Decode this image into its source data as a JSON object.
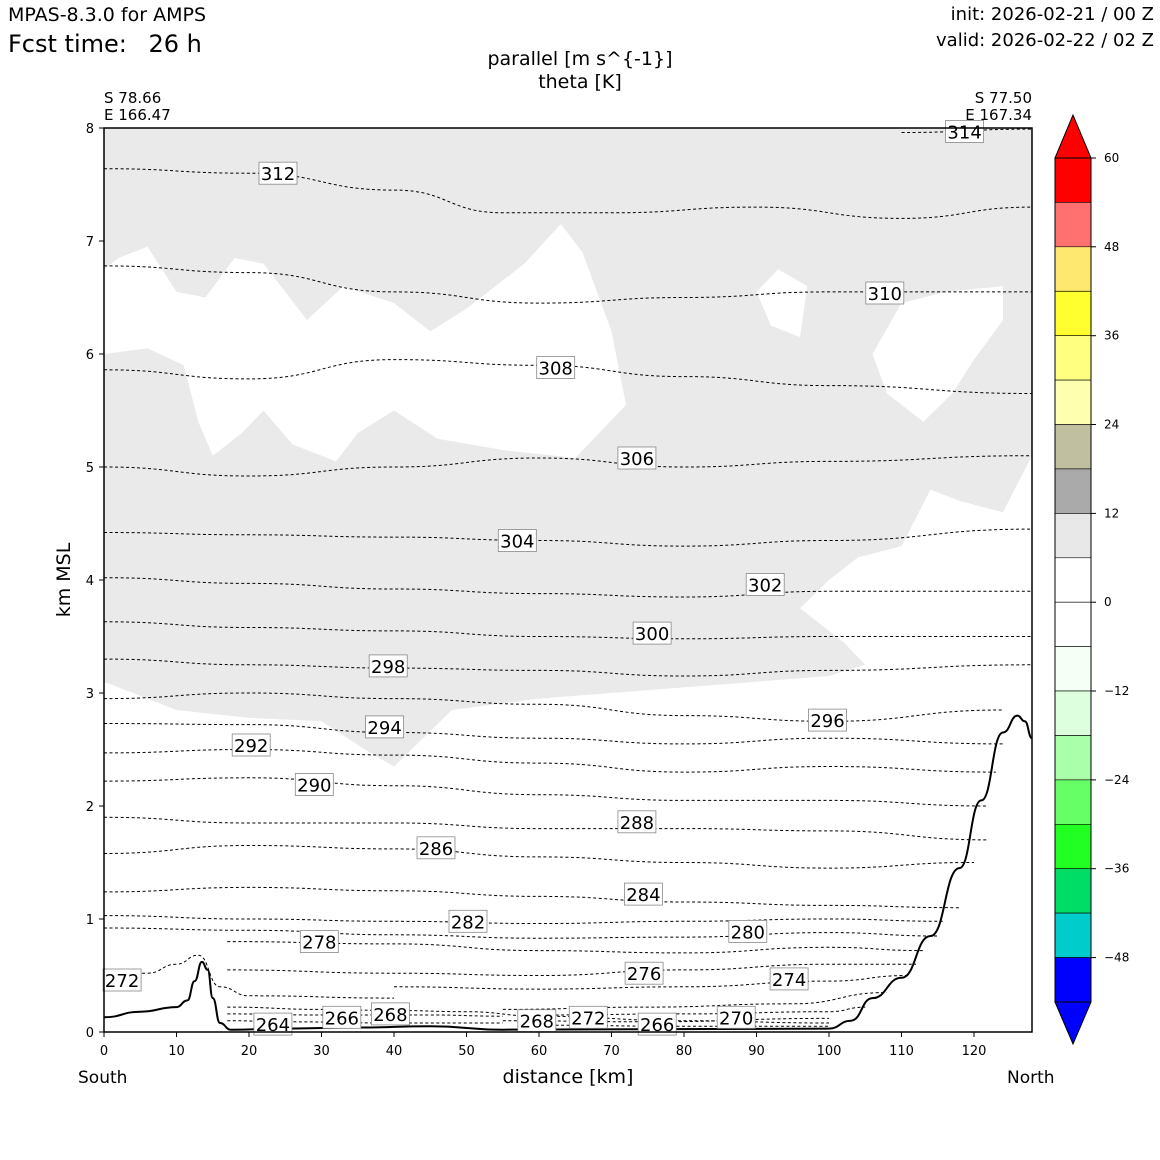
{
  "header": {
    "model": "MPAS-8.3.0 for AMPS",
    "fcst_label": "Fcst time:",
    "fcst_value": "26 h",
    "init": "init: 2026-02-21 / 00 Z",
    "valid": "valid: 2026-02-22 / 02 Z"
  },
  "start_point": {
    "lat": "S 78.66",
    "lon": "E 166.47"
  },
  "end_point": {
    "lat": "S 77.50",
    "lon": "E 167.34"
  },
  "chart_data": {
    "type": "cross-section",
    "title_line1": "parallel [m s^{-1}]",
    "title_line2": "theta [K]",
    "xlabel": "distance [km]",
    "ylabel": "km MSL",
    "xlim": [
      0,
      128
    ],
    "ylim": [
      0,
      8
    ],
    "xticks": [
      0,
      10,
      20,
      30,
      40,
      50,
      60,
      70,
      80,
      90,
      100,
      110,
      120
    ],
    "yticks": [
      0,
      1,
      2,
      3,
      4,
      5,
      6,
      7,
      8
    ],
    "left_end_label": "South",
    "right_end_label": "North",
    "shading_color": "#eaeaea",
    "terrain": [
      [
        0,
        0.13
      ],
      [
        5,
        0.18
      ],
      [
        10,
        0.22
      ],
      [
        11.5,
        0.28
      ],
      [
        12.5,
        0.45
      ],
      [
        13.5,
        0.62
      ],
      [
        14.3,
        0.55
      ],
      [
        15,
        0.3
      ],
      [
        16,
        0.08
      ],
      [
        17.5,
        0.02
      ],
      [
        25,
        0.03
      ],
      [
        35,
        0.04
      ],
      [
        45,
        0.05
      ],
      [
        55,
        0.02
      ],
      [
        100,
        0.03
      ],
      [
        103,
        0.1
      ],
      [
        106,
        0.3
      ],
      [
        110,
        0.48
      ],
      [
        114,
        0.85
      ],
      [
        118,
        1.45
      ],
      [
        121,
        2.05
      ],
      [
        124,
        2.65
      ],
      [
        126,
        2.8
      ],
      [
        127,
        2.75
      ],
      [
        128,
        2.6
      ]
    ],
    "theta_contours": [
      {
        "level": 264,
        "label": "264",
        "label_x": 23.3,
        "label_y": 0.07,
        "points": [
          [
            17,
            0.1
          ],
          [
            25,
            0.09
          ],
          [
            40,
            0.08
          ],
          [
            55,
            0.08
          ]
        ]
      },
      {
        "level": 266,
        "label": "266",
        "label_x": 32.8,
        "label_y": 0.13,
        "points": [
          [
            17,
            0.16
          ],
          [
            30,
            0.15
          ],
          [
            45,
            0.15
          ],
          [
            55,
            0.14
          ]
        ]
      },
      {
        "level": 268,
        "label": "268",
        "label_x": 39.5,
        "label_y": 0.16,
        "points": [
          [
            17,
            0.22
          ],
          [
            30,
            0.2
          ],
          [
            40,
            0.19
          ],
          [
            50,
            0.18
          ],
          [
            60,
            0.14
          ],
          [
            80,
            0.1
          ],
          [
            100,
            0.08
          ]
        ]
      },
      {
        "level": 266,
        "label": "266",
        "label_x": 76.3,
        "label_y": 0.07,
        "points": [
          [
            60,
            0.06
          ],
          [
            80,
            0.05
          ],
          [
            100,
            0.05
          ]
        ]
      },
      {
        "level": 268,
        "label": "268",
        "label_x": 59.7,
        "label_y": 0.1,
        "points": [
          [
            55,
            0.1
          ],
          [
            75,
            0.09
          ],
          [
            100,
            0.12
          ]
        ]
      },
      {
        "level": 270,
        "label": "270",
        "label_x": 87.2,
        "label_y": 0.13,
        "points": [
          [
            60,
            0.15
          ],
          [
            80,
            0.16
          ],
          [
            100,
            0.18
          ],
          [
            105,
            0.22
          ]
        ]
      },
      {
        "level": 272,
        "label": "272",
        "label_x": 66.8,
        "label_y": 0.13,
        "points": [
          [
            55,
            0.2
          ],
          [
            75,
            0.22
          ],
          [
            95,
            0.25
          ],
          [
            108,
            0.35
          ]
        ]
      },
      {
        "level": 272,
        "label": "272",
        "label_x": 2.5,
        "label_y": 0.46,
        "points": [
          [
            0,
            0.48
          ],
          [
            6,
            0.52
          ],
          [
            10,
            0.6
          ],
          [
            13,
            0.68
          ],
          [
            16,
            0.4
          ],
          [
            20,
            0.32
          ],
          [
            40,
            0.3
          ]
        ]
      },
      {
        "level": 274,
        "label": "274",
        "label_x": 94.5,
        "label_y": 0.47,
        "points": [
          [
            40,
            0.4
          ],
          [
            60,
            0.38
          ],
          [
            80,
            0.4
          ],
          [
            100,
            0.45
          ],
          [
            111,
            0.5
          ]
        ]
      },
      {
        "level": 276,
        "label": "276",
        "label_x": 74.5,
        "label_y": 0.52,
        "points": [
          [
            17,
            0.55
          ],
          [
            40,
            0.52
          ],
          [
            60,
            0.5
          ],
          [
            80,
            0.55
          ],
          [
            100,
            0.6
          ],
          [
            112,
            0.6
          ]
        ]
      },
      {
        "level": 278,
        "label": "278",
        "label_x": 29.7,
        "label_y": 0.8,
        "points": [
          [
            17,
            0.8
          ],
          [
            40,
            0.78
          ],
          [
            60,
            0.72
          ],
          [
            80,
            0.7
          ],
          [
            100,
            0.75
          ],
          [
            113,
            0.72
          ]
        ]
      },
      {
        "level": 280,
        "label": "280",
        "label_x": 88.8,
        "label_y": 0.89,
        "points": [
          [
            0,
            0.92
          ],
          [
            20,
            0.9
          ],
          [
            40,
            0.86
          ],
          [
            60,
            0.83
          ],
          [
            80,
            0.84
          ],
          [
            100,
            0.88
          ],
          [
            115,
            0.85
          ]
        ]
      },
      {
        "level": 282,
        "label": "282",
        "label_x": 50.2,
        "label_y": 0.98,
        "points": [
          [
            0,
            1.03
          ],
          [
            20,
            1.0
          ],
          [
            40,
            0.98
          ],
          [
            60,
            0.96
          ],
          [
            80,
            0.98
          ],
          [
            100,
            1.0
          ],
          [
            116,
            0.98
          ]
        ]
      },
      {
        "level": 284,
        "label": "284",
        "label_x": 74.4,
        "label_y": 1.22,
        "points": [
          [
            0,
            1.24
          ],
          [
            20,
            1.28
          ],
          [
            40,
            1.25
          ],
          [
            60,
            1.2
          ],
          [
            80,
            1.15
          ],
          [
            100,
            1.12
          ],
          [
            118,
            1.1
          ]
        ]
      },
      {
        "level": 286,
        "label": "286",
        "label_x": 45.8,
        "label_y": 1.63,
        "points": [
          [
            0,
            1.58
          ],
          [
            20,
            1.65
          ],
          [
            40,
            1.62
          ],
          [
            60,
            1.55
          ],
          [
            80,
            1.5
          ],
          [
            100,
            1.45
          ],
          [
            120,
            1.5
          ]
        ]
      },
      {
        "level": 288,
        "label": "288",
        "label_x": 73.5,
        "label_y": 1.86,
        "points": [
          [
            0,
            1.9
          ],
          [
            20,
            1.85
          ],
          [
            40,
            1.85
          ],
          [
            60,
            1.8
          ],
          [
            80,
            1.8
          ],
          [
            100,
            1.78
          ],
          [
            122,
            1.7
          ]
        ]
      },
      {
        "level": 290,
        "label": "290",
        "label_x": 29.0,
        "label_y": 2.19,
        "points": [
          [
            0,
            2.22
          ],
          [
            20,
            2.25
          ],
          [
            40,
            2.18
          ],
          [
            60,
            2.1
          ],
          [
            80,
            2.05
          ],
          [
            100,
            2.05
          ],
          [
            122,
            2.0
          ]
        ]
      },
      {
        "level": 292,
        "label": "292",
        "label_x": 20.3,
        "label_y": 2.54,
        "points": [
          [
            0,
            2.47
          ],
          [
            20,
            2.5
          ],
          [
            40,
            2.45
          ],
          [
            60,
            2.38
          ],
          [
            80,
            2.3
          ],
          [
            100,
            2.35
          ],
          [
            123,
            2.3
          ]
        ]
      },
      {
        "level": 294,
        "label": "294",
        "label_x": 38.7,
        "label_y": 2.7,
        "points": [
          [
            0,
            2.73
          ],
          [
            20,
            2.72
          ],
          [
            40,
            2.65
          ],
          [
            60,
            2.6
          ],
          [
            80,
            2.55
          ],
          [
            100,
            2.6
          ],
          [
            124,
            2.55
          ]
        ]
      },
      {
        "level": 296,
        "label": "296",
        "label_x": 99.8,
        "label_y": 2.76,
        "points": [
          [
            0,
            2.95
          ],
          [
            20,
            3.0
          ],
          [
            40,
            2.95
          ],
          [
            60,
            2.9
          ],
          [
            80,
            2.8
          ],
          [
            100,
            2.75
          ],
          [
            124,
            2.85
          ]
        ]
      },
      {
        "level": 298,
        "label": "298",
        "label_x": 39.2,
        "label_y": 3.24,
        "points": [
          [
            0,
            3.3
          ],
          [
            20,
            3.25
          ],
          [
            40,
            3.22
          ],
          [
            60,
            3.2
          ],
          [
            80,
            3.15
          ],
          [
            100,
            3.2
          ],
          [
            128,
            3.25
          ]
        ]
      },
      {
        "level": 300,
        "label": "300",
        "label_x": 75.6,
        "label_y": 3.53,
        "points": [
          [
            0,
            3.63
          ],
          [
            20,
            3.58
          ],
          [
            40,
            3.55
          ],
          [
            60,
            3.5
          ],
          [
            80,
            3.48
          ],
          [
            100,
            3.5
          ],
          [
            128,
            3.5
          ]
        ]
      },
      {
        "level": 302,
        "label": "302",
        "label_x": 91.2,
        "label_y": 3.96,
        "points": [
          [
            0,
            4.02
          ],
          [
            20,
            3.97
          ],
          [
            40,
            3.92
          ],
          [
            60,
            3.88
          ],
          [
            80,
            3.85
          ],
          [
            100,
            3.9
          ],
          [
            128,
            3.9
          ]
        ]
      },
      {
        "level": 304,
        "label": "304",
        "label_x": 57.0,
        "label_y": 4.35,
        "points": [
          [
            0,
            4.42
          ],
          [
            20,
            4.4
          ],
          [
            40,
            4.38
          ],
          [
            60,
            4.35
          ],
          [
            80,
            4.3
          ],
          [
            100,
            4.35
          ],
          [
            128,
            4.45
          ]
        ]
      },
      {
        "level": 306,
        "label": "306",
        "label_x": 73.5,
        "label_y": 5.08,
        "points": [
          [
            0,
            5.0
          ],
          [
            20,
            4.92
          ],
          [
            40,
            5.0
          ],
          [
            60,
            5.08
          ],
          [
            80,
            5.0
          ],
          [
            100,
            5.05
          ],
          [
            128,
            5.1
          ]
        ]
      },
      {
        "level": 308,
        "label": "308",
        "label_x": 62.3,
        "label_y": 5.88,
        "points": [
          [
            0,
            5.86
          ],
          [
            20,
            5.78
          ],
          [
            40,
            5.95
          ],
          [
            60,
            5.9
          ],
          [
            80,
            5.8
          ],
          [
            100,
            5.72
          ],
          [
            128,
            5.65
          ]
        ]
      },
      {
        "level": 310,
        "label": "310",
        "label_x": 107.7,
        "label_y": 6.54,
        "points": [
          [
            0,
            6.78
          ],
          [
            20,
            6.72
          ],
          [
            40,
            6.55
          ],
          [
            60,
            6.45
          ],
          [
            80,
            6.5
          ],
          [
            100,
            6.55
          ],
          [
            128,
            6.55
          ]
        ]
      },
      {
        "level": 312,
        "label": "312",
        "label_x": 24.0,
        "label_y": 7.6,
        "points": [
          [
            0,
            7.64
          ],
          [
            20,
            7.6
          ],
          [
            40,
            7.45
          ],
          [
            55,
            7.25
          ],
          [
            70,
            7.25
          ],
          [
            90,
            7.3
          ],
          [
            110,
            7.2
          ],
          [
            128,
            7.3
          ]
        ]
      },
      {
        "level": 314,
        "label": "314",
        "label_x": 118.7,
        "label_y": 7.97,
        "points": [
          [
            110,
            7.96
          ],
          [
            128,
            7.99
          ]
        ]
      }
    ],
    "colorbar": {
      "ticks": [
        "60",
        "48",
        "36",
        "24",
        "12",
        "0",
        "−12",
        "−24",
        "−36",
        "−48"
      ],
      "colors": [
        "#ff0000",
        "#ff7070",
        "#ffe870",
        "#ffff30",
        "#ffff80",
        "#ffffb0",
        "#c0c0a0",
        "#aaaaaa",
        "#e8e8e8",
        "#ffffff",
        "#ffffff",
        "#f5fff5",
        "#ddffdd",
        "#aaffaa",
        "#66ff66",
        "#22ff22",
        "#00dd66",
        "#00cccc",
        "#0000ff"
      ],
      "top_arrow": "#ff0000",
      "bottom_arrow": "#0000ff"
    }
  }
}
